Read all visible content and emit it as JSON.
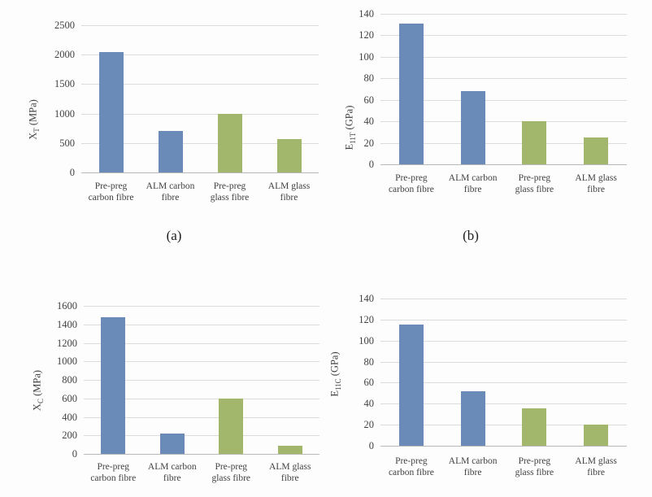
{
  "figure": {
    "description": "Four bar charts comparing pre-preg and ALM carbon/glass fibre composite properties"
  },
  "colors": {
    "carbon_bar": "#6a8ab8",
    "glass_bar": "#a3b76c",
    "gridline": "#dcdcdc",
    "axis_line": "#b9b9b9",
    "text": "#424242"
  },
  "chart_data": [
    {
      "id": "a",
      "type": "bar",
      "caption": "(a)",
      "ylabel_base": "X",
      "ylabel_sub": "T",
      "ylabel_unit": " (MPa)",
      "categories": [
        [
          "Pre-preg",
          "carbon fibre"
        ],
        [
          "ALM carbon",
          "fibre"
        ],
        [
          "Pre-preg",
          "glass fibre"
        ],
        [
          "ALM glass",
          "fibre"
        ]
      ],
      "values": [
        2050,
        700,
        1000,
        570
      ],
      "ylim": [
        0,
        2500
      ],
      "ytick_step": 500,
      "ytick_labels": [
        "0",
        "500",
        "1000",
        "1500",
        "2000",
        "2500"
      ],
      "bar_colors": [
        "#6a8ab8",
        "#6a8ab8",
        "#a3b76c",
        "#a3b76c"
      ],
      "grid": true,
      "legend": "none"
    },
    {
      "id": "b",
      "type": "bar",
      "caption": "(b)",
      "ylabel_base": "E",
      "ylabel_sub": "11T",
      "ylabel_unit": " (GPa)",
      "categories": [
        [
          "Pre-preg",
          "carbon fibre"
        ],
        [
          "ALM carbon",
          "fibre"
        ],
        [
          "Pre-preg",
          "glass fibre"
        ],
        [
          "ALM glass",
          "fibre"
        ]
      ],
      "values": [
        131,
        68,
        40,
        25
      ],
      "ylim": [
        0,
        140
      ],
      "ytick_step": 20,
      "ytick_labels": [
        "0",
        "20",
        "40",
        "60",
        "80",
        "100",
        "120",
        "140"
      ],
      "bar_colors": [
        "#6a8ab8",
        "#6a8ab8",
        "#a3b76c",
        "#a3b76c"
      ],
      "grid": true,
      "legend": "none"
    },
    {
      "id": "c",
      "type": "bar",
      "caption": "",
      "ylabel_base": "X",
      "ylabel_sub": "C",
      "ylabel_unit": " (MPa)",
      "categories": [
        [
          "Pre-preg",
          "carbon fibre"
        ],
        [
          "ALM carbon",
          "fibre"
        ],
        [
          "Pre-preg",
          "glass fibre"
        ],
        [
          "ALM glass",
          "fibre"
        ]
      ],
      "values": [
        1480,
        220,
        600,
        90
      ],
      "ylim": [
        0,
        1600
      ],
      "ytick_step": 200,
      "ytick_labels": [
        "0",
        "200",
        "400",
        "600",
        "800",
        "1000",
        "1200",
        "1400",
        "1600"
      ],
      "bar_colors": [
        "#6a8ab8",
        "#6a8ab8",
        "#a3b76c",
        "#a3b76c"
      ],
      "grid": true,
      "legend": "none"
    },
    {
      "id": "d",
      "type": "bar",
      "caption": "",
      "ylabel_base": "E",
      "ylabel_sub": "11C",
      "ylabel_unit": " (GPa)",
      "categories": [
        [
          "Pre-preg",
          "carbon fibre"
        ],
        [
          "ALM carbon",
          "fibre"
        ],
        [
          "Pre-preg",
          "glass fibre"
        ],
        [
          "ALM glass",
          "fibre"
        ]
      ],
      "values": [
        115,
        52,
        36,
        20
      ],
      "ylim": [
        0,
        140
      ],
      "ytick_step": 20,
      "ytick_labels": [
        "0",
        "20",
        "40",
        "60",
        "80",
        "100",
        "120",
        "140"
      ],
      "bar_colors": [
        "#6a8ab8",
        "#6a8ab8",
        "#a3b76c",
        "#a3b76c"
      ],
      "grid": true,
      "legend": "none"
    }
  ]
}
